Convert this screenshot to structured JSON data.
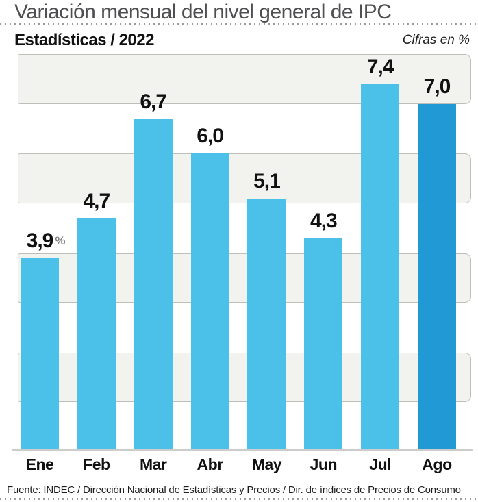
{
  "header": {
    "title": "Variación mensual del nivel general de IPC",
    "section": "Estadísticas / 2022",
    "units_note": "Cifras en %"
  },
  "chart_data": {
    "type": "bar",
    "title": "Variación mensual del nivel general de IPC",
    "subtitle": "Estadísticas / 2022",
    "units": "Cifras en %",
    "categories": [
      "Ene",
      "Feb",
      "Mar",
      "Abr",
      "May",
      "Jun",
      "Jul",
      "Ago"
    ],
    "values": [
      3.9,
      4.7,
      6.7,
      6.0,
      5.1,
      4.3,
      7.4,
      7.0
    ],
    "value_labels": [
      "3,9",
      "4,7",
      "6,7",
      "6,0",
      "5,1",
      "4,3",
      "7,4",
      "7,0"
    ],
    "first_label_suffix": "%",
    "xlabel": "",
    "ylabel": "",
    "ylim": [
      0,
      8
    ],
    "grid": "alternating horizontal bands, no y-axis tick labels",
    "legend": "none",
    "highlight_index": 7,
    "colors": {
      "bar": "#4bc0e8",
      "bar_highlight": "#2199d4",
      "band_fill": "#f2f2ee",
      "band_border": "#bfbfba",
      "baseline": "#cccccc",
      "title_text": "#4f4f52",
      "label_text": "#111111",
      "percent_suffix": "#808184"
    }
  },
  "footer": {
    "source": "Fuente: INDEC / Dirección Nacional de Estadísticas y Precios / Dir. de índices de Precios de Consumo"
  }
}
